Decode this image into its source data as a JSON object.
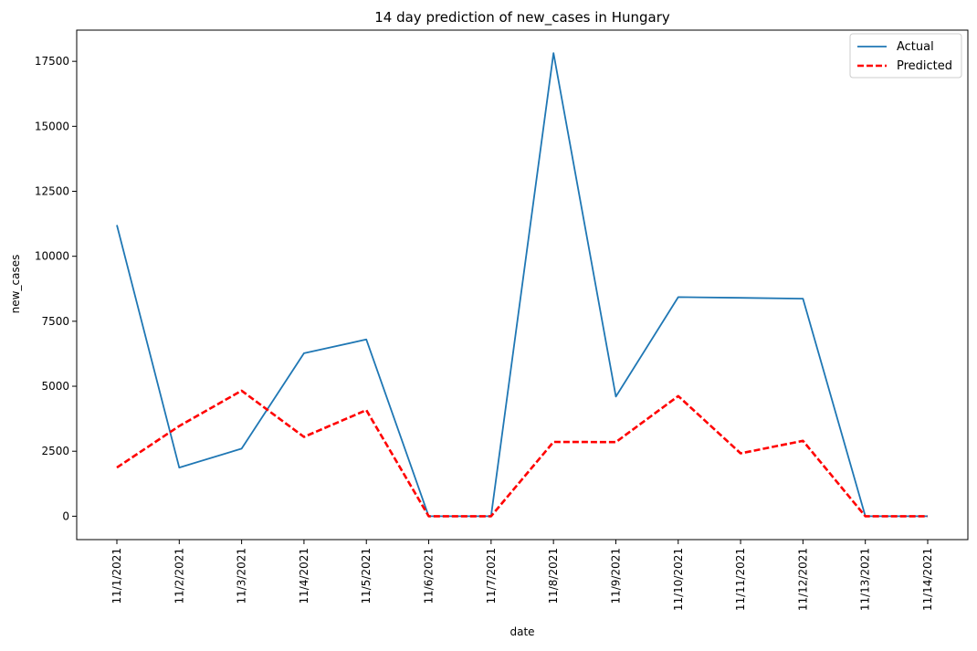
{
  "chart_data": {
    "type": "line",
    "title": "14 day prediction of new_cases in Hungary",
    "xlabel": "date",
    "ylabel": "new_cases",
    "categories": [
      "11/1/2021",
      "11/2/2021",
      "11/3/2021",
      "11/4/2021",
      "11/5/2021",
      "11/6/2021",
      "11/7/2021",
      "11/8/2021",
      "11/9/2021",
      "11/10/2021",
      "11/11/2021",
      "11/12/2021",
      "11/13/2021",
      "11/14/2021"
    ],
    "yticks": [
      0,
      2500,
      5000,
      7500,
      10000,
      12500,
      15000,
      17500
    ],
    "ylim": [
      -900,
      18700
    ],
    "grid": false,
    "legend_position": "top-right",
    "series": [
      {
        "name": "Actual",
        "color": "#1f77b4",
        "line_style": "solid",
        "values": [
          11200,
          1870,
          2600,
          6270,
          6800,
          0,
          0,
          17820,
          4600,
          8430,
          8400,
          8370,
          0,
          0
        ]
      },
      {
        "name": "Predicted",
        "color": "#ff0000",
        "line_style": "dashed",
        "values": [
          1870,
          3470,
          4830,
          3050,
          4080,
          0,
          0,
          2860,
          2850,
          4620,
          2420,
          2900,
          0,
          0
        ]
      }
    ]
  }
}
